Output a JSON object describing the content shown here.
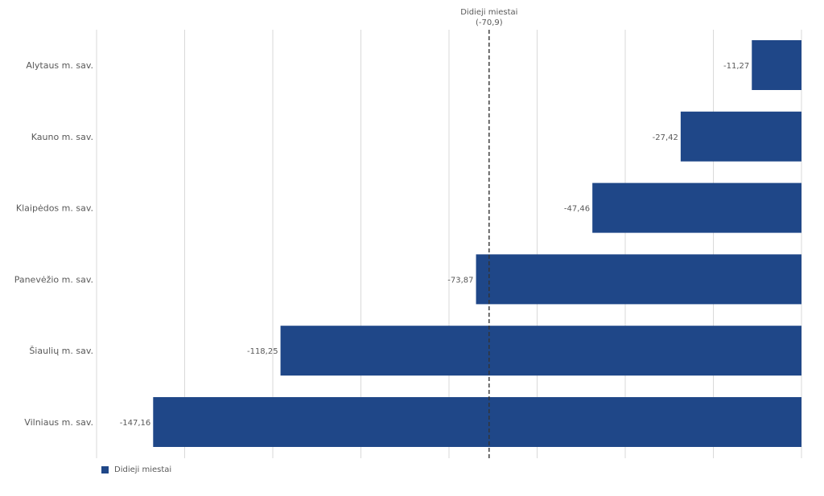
{
  "chart_data": {
    "type": "bar",
    "orientation": "horizontal",
    "categories": [
      "Alytaus m. sav.",
      "Kauno m. sav.",
      "Klaipėdos m. sav.",
      "Panevėžio m. sav.",
      "Šiaulių m. sav.",
      "Vilniaus m. sav."
    ],
    "series": [
      {
        "name": "Didieji miestai",
        "values": [
          -11.27,
          -27.42,
          -47.46,
          -73.87,
          -118.25,
          -147.16
        ],
        "value_labels": [
          "-11,27",
          "-27,42",
          "-47,46",
          "-73,87",
          "-118,25",
          "-147,16"
        ],
        "color": "#1f4788"
      }
    ],
    "reference_line": {
      "label": "Didieji miestai",
      "value": -70.9,
      "value_label": "(-70,9)",
      "style": "dashed"
    },
    "xlim": [
      -160,
      0
    ],
    "grid": true,
    "legend_position": "bottom-left"
  }
}
